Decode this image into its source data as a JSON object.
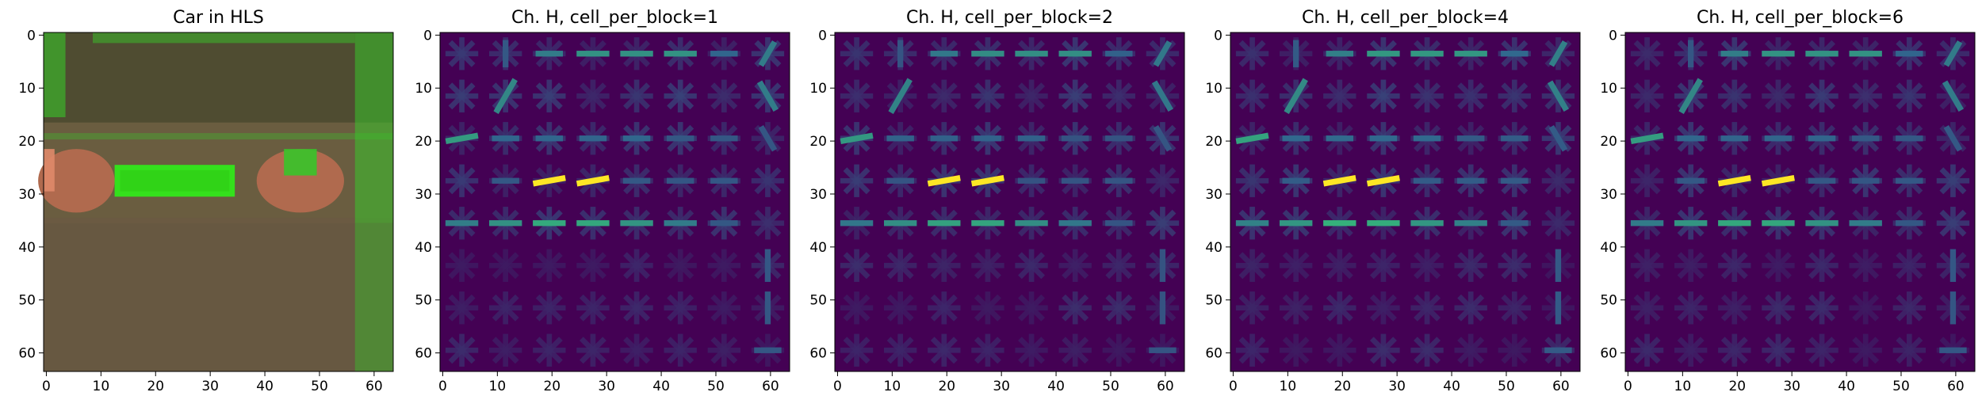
{
  "figure": {
    "panels": [
      {
        "title": "Car in HLS",
        "kind": "hls-image",
        "x_ticks": [
          "0",
          "10",
          "20",
          "30",
          "40",
          "50",
          "60"
        ],
        "y_ticks": [
          "0",
          "10",
          "20",
          "30",
          "40",
          "50",
          "60"
        ],
        "colors": {
          "background": "#6b5a42",
          "upper_dark": "#4a4a2e",
          "green_edge": "#39c42a",
          "plate": "#34e01c",
          "taillight": "#b06a4e"
        }
      },
      {
        "title": "Ch. H, cell_per_block=1",
        "kind": "hog",
        "x_ticks": [
          "0",
          "10",
          "20",
          "30",
          "40",
          "50",
          "60"
        ],
        "y_ticks": [
          "0",
          "10",
          "20",
          "30",
          "40",
          "50",
          "60"
        ]
      },
      {
        "title": "Ch. H, cell_per_block=2",
        "kind": "hog",
        "x_ticks": [
          "0",
          "10",
          "20",
          "30",
          "40",
          "50",
          "60"
        ],
        "y_ticks": [
          "0",
          "10",
          "20",
          "30",
          "40",
          "50",
          "60"
        ]
      },
      {
        "title": "Ch. H, cell_per_block=4",
        "kind": "hog",
        "x_ticks": [
          "0",
          "10",
          "20",
          "30",
          "40",
          "50",
          "60"
        ],
        "y_ticks": [
          "0",
          "10",
          "20",
          "30",
          "40",
          "50",
          "60"
        ]
      },
      {
        "title": "Ch. H, cell_per_block=6",
        "kind": "hog",
        "x_ticks": [
          "0",
          "10",
          "20",
          "30",
          "40",
          "50",
          "60"
        ],
        "y_ticks": [
          "0",
          "10",
          "20",
          "30",
          "40",
          "50",
          "60"
        ]
      }
    ],
    "colormap": {
      "name": "viridis",
      "low": "#440154",
      "mid": "#31688e",
      "high_mid": "#35b779",
      "high": "#fde725"
    }
  }
}
